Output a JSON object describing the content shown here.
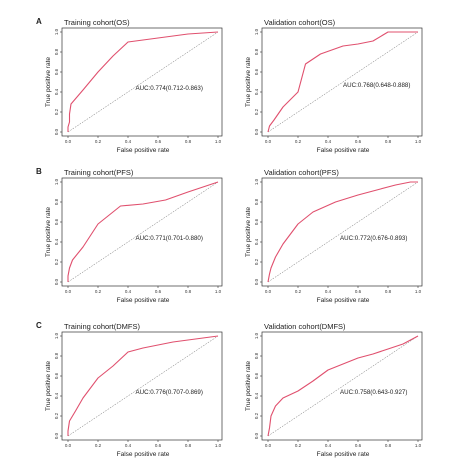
{
  "panel_letters": [
    "A",
    "B",
    "C"
  ],
  "style": {
    "roc_color": "#e0506e",
    "diag_color": "#666666",
    "axis_color": "#333333"
  },
  "chart_data": [
    {
      "type": "line",
      "panel": "A",
      "title": "Training cohort(OS)",
      "xlabel": "False positive rate",
      "ylabel": "True positive rate",
      "xlim": [
        0,
        1
      ],
      "ylim": [
        0,
        1
      ],
      "x_ticks": [
        "0.0",
        "0.2",
        "0.4",
        "0.6",
        "0.8",
        "1.0"
      ],
      "y_ticks": [
        "0.0",
        "0.2",
        "0.4",
        "0.6",
        "0.8",
        "1.0"
      ],
      "annotation": "AUC:0.774(0.712-0.863)",
      "roc": {
        "x": [
          0,
          0,
          0.01,
          0.01,
          0.02,
          0.1,
          0.2,
          0.3,
          0.4,
          0.5,
          0.6,
          0.7,
          0.8,
          0.9,
          1.0
        ],
        "y": [
          0,
          0.05,
          0.1,
          0.18,
          0.28,
          0.42,
          0.6,
          0.76,
          0.9,
          0.92,
          0.94,
          0.96,
          0.98,
          0.99,
          1.0
        ]
      }
    },
    {
      "type": "line",
      "panel": "A",
      "title": "Validation cohort(OS)",
      "xlabel": "False positive rate",
      "ylabel": "True positive rate",
      "xlim": [
        0,
        1
      ],
      "ylim": [
        0,
        1
      ],
      "x_ticks": [
        "0.0",
        "0.2",
        "0.4",
        "0.6",
        "0.8",
        "1.0"
      ],
      "y_ticks": [
        "0.0",
        "0.2",
        "0.4",
        "0.6",
        "0.8",
        "1.0"
      ],
      "annotation": "AUC:0.768(0.648-0.888)",
      "roc": {
        "x": [
          0,
          0.01,
          0.04,
          0.1,
          0.2,
          0.25,
          0.35,
          0.5,
          0.6,
          0.7,
          0.8,
          0.9,
          1.0
        ],
        "y": [
          0,
          0.06,
          0.12,
          0.25,
          0.4,
          0.68,
          0.78,
          0.86,
          0.88,
          0.91,
          1.0,
          1.0,
          1.0
        ]
      }
    },
    {
      "type": "line",
      "panel": "B",
      "title": "Training cohort(PFS)",
      "xlabel": "False positive rate",
      "ylabel": "True positive rate",
      "xlim": [
        0,
        1
      ],
      "ylim": [
        0,
        1
      ],
      "x_ticks": [
        "0.0",
        "0.2",
        "0.4",
        "0.6",
        "0.8",
        "1.0"
      ],
      "y_ticks": [
        "0.0",
        "0.2",
        "0.4",
        "0.6",
        "0.8",
        "1.0"
      ],
      "annotation": "AUC:0.771(0.701-0.880)",
      "roc": {
        "x": [
          0,
          0,
          0.01,
          0.03,
          0.1,
          0.2,
          0.35,
          0.5,
          0.65,
          0.8,
          0.9,
          1.0
        ],
        "y": [
          0,
          0.06,
          0.14,
          0.22,
          0.35,
          0.58,
          0.76,
          0.78,
          0.82,
          0.9,
          0.95,
          1.0
        ]
      }
    },
    {
      "type": "line",
      "panel": "B",
      "title": "Validation cohort(PFS)",
      "xlabel": "False positive rate",
      "ylabel": "True positive rate",
      "xlim": [
        0,
        1
      ],
      "ylim": [
        0,
        1
      ],
      "x_ticks": [
        "0.0",
        "0.2",
        "0.4",
        "0.6",
        "0.8",
        "1.0"
      ],
      "y_ticks": [
        "0.0",
        "0.2",
        "0.4",
        "0.6",
        "0.8",
        "1.0"
      ],
      "annotation": "AUC:0.772(0.676-0.893)",
      "roc": {
        "x": [
          0,
          0.01,
          0.02,
          0.05,
          0.1,
          0.2,
          0.3,
          0.45,
          0.6,
          0.75,
          0.85,
          0.95,
          1.0
        ],
        "y": [
          0,
          0.08,
          0.14,
          0.25,
          0.38,
          0.58,
          0.7,
          0.8,
          0.87,
          0.93,
          0.97,
          1.0,
          1.0
        ]
      }
    },
    {
      "type": "line",
      "panel": "C",
      "title": "Training cohort(DMFS)",
      "xlabel": "False positive rate",
      "ylabel": "True positive rate",
      "xlim": [
        0,
        1
      ],
      "ylim": [
        0,
        1
      ],
      "x_ticks": [
        "0.0",
        "0.2",
        "0.4",
        "0.6",
        "0.8",
        "1.0"
      ],
      "y_ticks": [
        "0.0",
        "0.2",
        "0.4",
        "0.6",
        "0.8",
        "1.0"
      ],
      "annotation": "AUC:0.776(0.707-0.869)",
      "roc": {
        "x": [
          0,
          0,
          0.01,
          0.05,
          0.1,
          0.2,
          0.3,
          0.4,
          0.5,
          0.6,
          0.7,
          0.8,
          0.9,
          1.0
        ],
        "y": [
          0,
          0.05,
          0.15,
          0.25,
          0.38,
          0.58,
          0.7,
          0.84,
          0.88,
          0.91,
          0.94,
          0.96,
          0.98,
          1.0
        ]
      }
    },
    {
      "type": "line",
      "panel": "C",
      "title": "Validation cohort(DMFS)",
      "xlabel": "False positive rate",
      "ylabel": "True positive rate",
      "xlim": [
        0,
        1
      ],
      "ylim": [
        0,
        1
      ],
      "x_ticks": [
        "0.0",
        "0.2",
        "0.4",
        "0.6",
        "0.8",
        "1.0"
      ],
      "y_ticks": [
        "0.0",
        "0.2",
        "0.4",
        "0.6",
        "0.8",
        "1.0"
      ],
      "annotation": "AUC:0.758(0.643-0.927)",
      "roc": {
        "x": [
          0,
          0.01,
          0.02,
          0.05,
          0.1,
          0.2,
          0.3,
          0.4,
          0.5,
          0.6,
          0.7,
          0.8,
          0.9,
          1.0
        ],
        "y": [
          0,
          0.08,
          0.2,
          0.3,
          0.38,
          0.45,
          0.55,
          0.66,
          0.72,
          0.78,
          0.82,
          0.87,
          0.92,
          1.0
        ]
      }
    }
  ]
}
